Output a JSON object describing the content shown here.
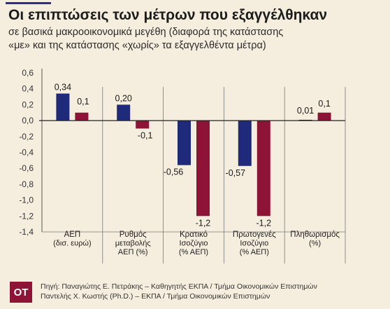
{
  "header": {
    "title": "Οι επιπτώσεις των μέτρων που εξαγγέλθηκαν",
    "subtitle_line1": "σε βασικά μακροοικονομικά μεγέθη (διαφορά της κατάστασης",
    "subtitle_line2": "«με» και της κατάστασης «χωρίς» τα εξαγγελθέντα μέτρα)"
  },
  "footer": {
    "logo_text": "ΟΤ",
    "source_line1": "Πηγή: Παναγιώτης Ε. Πετράκης – Καθηγητής ΕΚΠΑ / Τμήμα Οικονομικών Επιστημών",
    "source_line2": "Παντελής Χ. Κωστής (Ph.D.) – ΕΚΠΑ / Τμήμα Οικονομικών Επιστημών"
  },
  "chart_data": {
    "type": "bar",
    "categories": [
      [
        "ΑΕΠ",
        "(δισ. ευρώ)"
      ],
      [
        "Ρυθμός",
        "μεταβολής",
        "ΑΕΠ (%)"
      ],
      [
        "Κρατικό",
        "Ισοζύγιο",
        "(% ΑΕΠ)"
      ],
      [
        "Πρωτογενές",
        "Ισοζύγιο",
        "(% ΑΕΠ)"
      ],
      [
        "Πληθωρισμός",
        "(%)"
      ]
    ],
    "series": [
      {
        "values": [
          0.34,
          0.2,
          -0.56,
          -0.57,
          0.01
        ],
        "labels": [
          "0,34",
          "0,20",
          "-0,56",
          "-0,57",
          "0,01"
        ],
        "color": "#1f2a7a"
      },
      {
        "values": [
          0.1,
          -0.1,
          -1.2,
          -1.2,
          0.1
        ],
        "labels": [
          "0,1",
          "-0,1",
          "-1,2",
          "-1,2",
          "0,1"
        ],
        "color": "#8d1436"
      }
    ],
    "ylim": [
      -1.4,
      0.6
    ],
    "yticks": [
      "0,6",
      "0,4",
      "0,2",
      "0,0",
      "-0,2",
      "-0,4",
      "-0,6",
      "-0,8",
      "-1,0",
      "-1,2",
      "-1,4"
    ],
    "ytick_values": [
      0.6,
      0.4,
      0.2,
      0.0,
      -0.2,
      -0.4,
      -0.6,
      -0.8,
      -1.0,
      -1.2,
      -1.4
    ],
    "grid": false
  }
}
